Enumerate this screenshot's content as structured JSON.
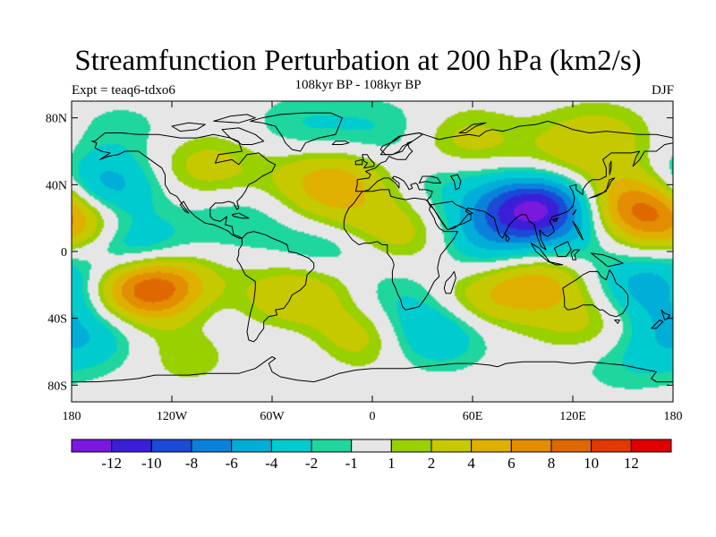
{
  "title": "Streamfunction Perturbation at 200 hPa (km2/s)",
  "subtitle": "108kyr BP - 108kyr BP",
  "expt_label": "Expt = teaq6-tdxo6",
  "season": "DJF",
  "map": {
    "projection": "cylindrical-equidistant",
    "lon_range": [
      -180,
      180
    ],
    "lat_range": [
      -90,
      90
    ],
    "lat_ticks": [
      {
        "label": "80N",
        "lat": 80
      },
      {
        "label": "40N",
        "lat": 40
      },
      {
        "label": "0",
        "lat": 0
      },
      {
        "label": "40S",
        "lat": -40
      },
      {
        "label": "80S",
        "lat": -80
      }
    ],
    "lon_ticks": [
      {
        "label": "180",
        "lon": -180
      },
      {
        "label": "120W",
        "lon": -120
      },
      {
        "label": "60W",
        "lon": -60
      },
      {
        "label": "0",
        "lon": 0
      },
      {
        "label": "60E",
        "lon": 60
      },
      {
        "label": "120E",
        "lon": 120
      },
      {
        "label": "180",
        "lon": 180
      }
    ],
    "background_color": "#e6e6e6"
  },
  "colorbar": {
    "colors": [
      "#7a18e0",
      "#3a1ed8",
      "#1a4ad6",
      "#0a82dc",
      "#00aed8",
      "#00ccd0",
      "#1ed69e",
      "#e6e6e6",
      "#98d000",
      "#c6c800",
      "#e0b000",
      "#e28e00",
      "#e06800",
      "#e03a00",
      "#e00000"
    ],
    "labels": [
      "-12",
      "-10",
      "-8",
      "-6",
      "-4",
      "-2",
      "-1",
      "1",
      "2",
      "4",
      "6",
      "8",
      "10",
      "12"
    ]
  },
  "chart_data": {
    "type": "heatmap",
    "title": "Streamfunction Perturbation at 200 hPa (km2/s)",
    "subtitle": "108kyr BP - 108kyr BP",
    "levels": [
      -12,
      -10,
      -8,
      -6,
      -4,
      -2,
      -1,
      1,
      2,
      4,
      6,
      8,
      10,
      12
    ],
    "anomaly_centers": [
      {
        "lon": 100,
        "lat": 27,
        "value": -12,
        "desc": "strong negative center over South/East Asia"
      },
      {
        "lon": -162,
        "lat": 38,
        "value": -6
      },
      {
        "lon": -145,
        "lat": 2,
        "value": -5
      },
      {
        "lon": 68,
        "lat": 12,
        "value": -4
      },
      {
        "lon": -27,
        "lat": 0,
        "value": -4
      },
      {
        "lon": 165,
        "lat": -20,
        "value": -5
      },
      {
        "lon": 35,
        "lat": -50,
        "value": -4
      },
      {
        "lon": -132,
        "lat": -22,
        "value": 11,
        "desc": "positive center over southeast Pacific"
      },
      {
        "lon": 158,
        "lat": 28,
        "value": 8,
        "desc": "positive center over northwest Pacific"
      },
      {
        "lon": 96,
        "lat": -18,
        "value": 6
      },
      {
        "lon": -25,
        "lat": 42,
        "value": 5
      },
      {
        "lon": -178,
        "lat": 15,
        "value": 5
      },
      {
        "lon": -5,
        "lat": -50,
        "value": 4
      },
      {
        "lon": 20,
        "lat": 10,
        "value": 3
      },
      {
        "lon": 55,
        "lat": 65,
        "value": 3
      },
      {
        "lon": -100,
        "lat": 50,
        "value": 3
      },
      {
        "lon": 135,
        "lat": 68,
        "value": 3
      },
      {
        "lon": -58,
        "lat": -30,
        "value": 3
      },
      {
        "lon": -30,
        "lat": -15,
        "value": 3
      },
      {
        "lon": 60,
        "lat": -30,
        "value": 3
      },
      {
        "lon": 135,
        "lat": -45,
        "value": 3
      },
      {
        "lon": -110,
        "lat": -60,
        "value": 2
      },
      {
        "lon": 115,
        "lat": 50,
        "value": 2
      },
      {
        "lon": -40,
        "lat": 75,
        "value": -2
      },
      {
        "lon": 8,
        "lat": 72,
        "value": -2
      },
      {
        "lon": -165,
        "lat": -55,
        "value": -2
      },
      {
        "lon": 120,
        "lat": 5,
        "value": -2
      },
      {
        "lon": 75,
        "lat": -8,
        "value": -2
      },
      {
        "lon": 10,
        "lat": -25,
        "value": -2
      },
      {
        "lon": -95,
        "lat": -35,
        "value": -2
      },
      {
        "lon": 150,
        "lat": -65,
        "value": -2
      },
      {
        "lon": 45,
        "lat": 42,
        "value": -2
      },
      {
        "lon": -80,
        "lat": 20,
        "value": -2
      },
      {
        "lon": -15,
        "lat": 20,
        "value": 2
      },
      {
        "lon": -150,
        "lat": 72,
        "value": -1.5
      },
      {
        "lon": 175,
        "lat": -45,
        "value": -3
      },
      {
        "lon": 30,
        "lat": -40,
        "value": -1.5
      },
      {
        "lon": -50,
        "lat": -60,
        "value": -1.5
      }
    ]
  }
}
